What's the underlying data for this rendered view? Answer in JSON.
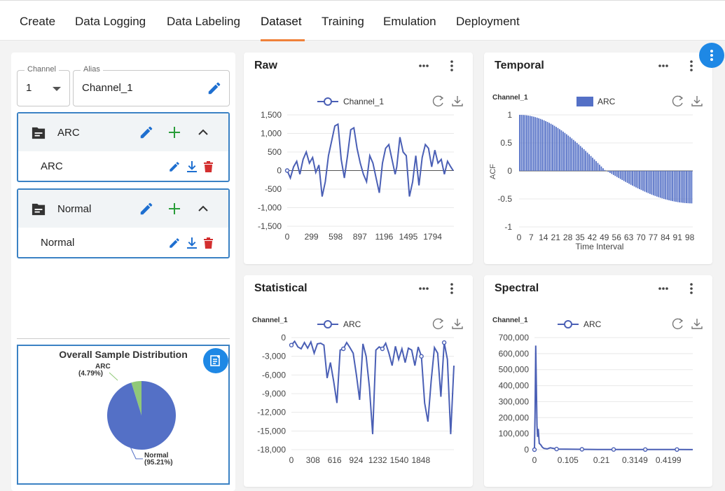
{
  "nav": {
    "tabs": [
      {
        "label": "Create"
      },
      {
        "label": "Data Logging"
      },
      {
        "label": "Data Labeling"
      },
      {
        "label": "Dataset",
        "active": true
      },
      {
        "label": "Training"
      },
      {
        "label": "Emulation"
      },
      {
        "label": "Deployment"
      }
    ],
    "accent": "#f0813a"
  },
  "left": {
    "channel_label": "Channel",
    "channel_value": "1",
    "alias_label": "Alias",
    "alias_value": "Channel_1",
    "groups": [
      {
        "name": "ARC",
        "item": "ARC"
      },
      {
        "name": "Normal",
        "item": "Normal"
      }
    ],
    "pie": {
      "title": "Overall Sample Distribution",
      "slices": [
        {
          "label": "ARC",
          "pct_label": "(4.79%)",
          "value": 4.79,
          "color": "#90c878"
        },
        {
          "label": "Normal",
          "pct_label": "(95.21%)",
          "value": 95.21,
          "color": "#5470c6"
        }
      ]
    }
  },
  "cards": {
    "raw": {
      "title": "Raw"
    },
    "temporal": {
      "title": "Temporal"
    },
    "statistical": {
      "title": "Statistical"
    },
    "spectral": {
      "title": "Spectral"
    }
  },
  "chart_data": [
    {
      "id": "raw",
      "type": "line",
      "legend": "Channel_1",
      "x_ticks": [
        "0",
        "299",
        "598",
        "897",
        "1196",
        "1495",
        "1794"
      ],
      "y_ticks": [
        "1,500",
        "1,000",
        "500",
        "0",
        "-500",
        "-1,000",
        "-1,500"
      ],
      "ylim": [
        -1500,
        1500
      ],
      "xlim": [
        0,
        2100
      ],
      "series": [
        {
          "name": "Channel_1",
          "color": "#4a5fb5",
          "x": [
            0,
            40,
            80,
            120,
            160,
            200,
            240,
            280,
            320,
            360,
            400,
            440,
            480,
            520,
            560,
            600,
            640,
            680,
            720,
            760,
            800,
            840,
            880,
            920,
            960,
            1000,
            1040,
            1080,
            1120,
            1160,
            1200,
            1240,
            1280,
            1320,
            1360,
            1380,
            1420,
            1460,
            1500,
            1540,
            1580,
            1620,
            1660,
            1700,
            1740,
            1780,
            1820,
            1860,
            1900,
            1940,
            1980,
            2020,
            2060,
            2090
          ],
          "y": [
            0,
            -200,
            100,
            250,
            -100,
            300,
            500,
            200,
            350,
            -50,
            150,
            -700,
            -300,
            400,
            800,
            1200,
            1250,
            300,
            -200,
            400,
            1100,
            1150,
            600,
            200,
            -100,
            -300,
            400,
            200,
            -200,
            -600,
            200,
            600,
            700,
            300,
            -100,
            100,
            900,
            500,
            400,
            -700,
            -300,
            400,
            -400,
            350,
            700,
            600,
            100,
            550,
            200,
            300,
            -100,
            250,
            100,
            0
          ]
        }
      ]
    },
    {
      "id": "temporal",
      "type": "bar",
      "ylabel_top": "Channel_1",
      "legend": "ARC",
      "xlabel": "Time Interval",
      "ylabel": "ACF",
      "x_ticks": [
        "0",
        "7",
        "14",
        "21",
        "28",
        "35",
        "42",
        "49",
        "56",
        "63",
        "70",
        "77",
        "84",
        "91",
        "98"
      ],
      "y_ticks": [
        "1",
        "0.5",
        "0",
        "-0.5",
        "-1"
      ],
      "ylim": [
        -1,
        1
      ],
      "lags": 100,
      "series": [
        {
          "name": "ARC",
          "color": "#5470c6"
        }
      ]
    },
    {
      "id": "statistical",
      "type": "line",
      "ylabel_top": "Channel_1",
      "legend": "ARC",
      "x_ticks": [
        "0",
        "308",
        "616",
        "924",
        "1232",
        "1540",
        "1848"
      ],
      "y_ticks": [
        "0",
        "-3,000",
        "-6,000",
        "-9,000",
        "-12,000",
        "-15,000",
        "-18,000"
      ],
      "ylim": [
        -18000,
        0
      ],
      "xlim": [
        0,
        2000
      ],
      "series": [
        {
          "name": "ARC",
          "color": "#4a5fb5",
          "x": [
            0,
            40,
            80,
            120,
            160,
            200,
            240,
            280,
            320,
            360,
            400,
            440,
            480,
            520,
            560,
            600,
            640,
            680,
            720,
            760,
            800,
            840,
            880,
            920,
            960,
            1000,
            1040,
            1080,
            1120,
            1160,
            1200,
            1240,
            1280,
            1320,
            1360,
            1400,
            1440,
            1480,
            1520,
            1560,
            1600,
            1640,
            1680,
            1720,
            1760,
            1800,
            1840,
            1880,
            1920,
            1960,
            2000
          ],
          "y": [
            -1200,
            -600,
            -1500,
            -1800,
            -800,
            -1700,
            -700,
            -2500,
            -1000,
            -900,
            -1200,
            -6500,
            -4000,
            -7000,
            -10500,
            -2000,
            -1800,
            -800,
            -1600,
            -2500,
            -6000,
            -10000,
            -1000,
            -3000,
            -8000,
            -15500,
            -2000,
            -1500,
            -1800,
            -900,
            -2500,
            -4500,
            -1400,
            -3500,
            -1800,
            -4000,
            -1700,
            -2000,
            -4500,
            -1500,
            -3000,
            -10500,
            -13500,
            -7000,
            -1600,
            -2500,
            -9500,
            -800,
            -3500,
            -15500,
            -4500
          ]
        }
      ]
    },
    {
      "id": "spectral",
      "type": "line",
      "ylabel_top": "Channel_1",
      "legend": "ARC",
      "x_ticks": [
        "0",
        "0.105",
        "0.21",
        "0.3149",
        "0.4199"
      ],
      "y_ticks": [
        "700,000",
        "600,000",
        "500,000",
        "400,000",
        "300,000",
        "200,000",
        "100,000",
        "0"
      ],
      "ylim": [
        0,
        700000
      ],
      "xlim": [
        0,
        0.5
      ],
      "series": [
        {
          "name": "ARC",
          "color": "#4a5fb5",
          "x": [
            0,
            0.002,
            0.004,
            0.006,
            0.008,
            0.01,
            0.012,
            0.015,
            0.02,
            0.025,
            0.03,
            0.04,
            0.05,
            0.07,
            0.1,
            0.15,
            0.2,
            0.25,
            0.3,
            0.35,
            0.4,
            0.45,
            0.5
          ],
          "y": [
            0,
            250000,
            650000,
            400000,
            150000,
            80000,
            130000,
            40000,
            30000,
            15000,
            8000,
            5000,
            12000,
            4000,
            3000,
            2000,
            1500,
            1200,
            1000,
            900,
            800,
            700,
            600
          ]
        }
      ]
    }
  ]
}
